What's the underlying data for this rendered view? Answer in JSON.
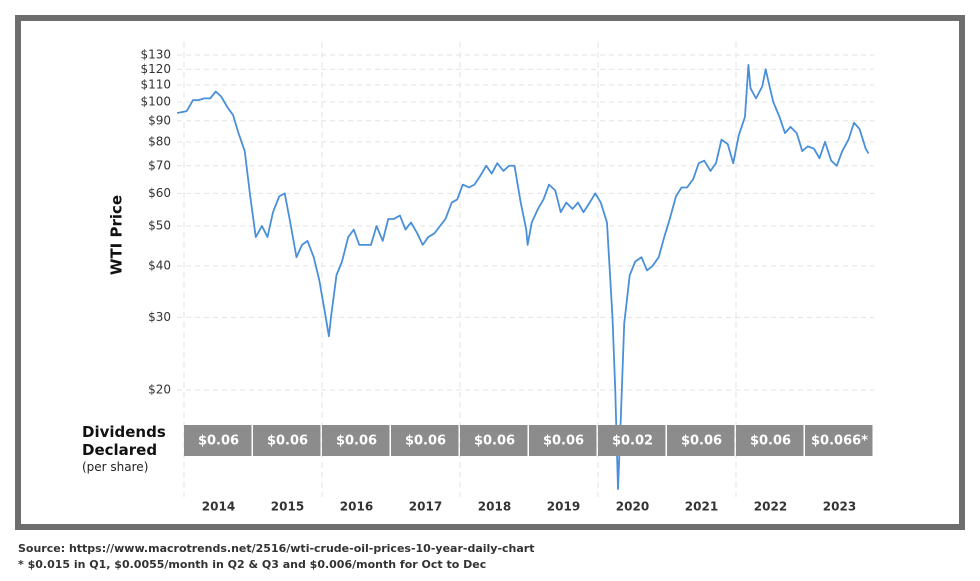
{
  "chart_data": {
    "type": "line",
    "y_label": "WTI Price",
    "log_scale": true,
    "grid": true,
    "color": "#4a90d9",
    "xlim": [
      2013.9,
      2024
    ],
    "xticks": [
      2014,
      2015,
      2016,
      2017,
      2018,
      2019,
      2020,
      2021,
      2022,
      2023
    ],
    "ylim": [
      11,
      140
    ],
    "yticks": [
      {
        "value": 20,
        "label": "$20"
      },
      {
        "value": 30,
        "label": "$30"
      },
      {
        "value": 40,
        "label": "$40"
      },
      {
        "value": 50,
        "label": "$50"
      },
      {
        "value": 60,
        "label": "$60"
      },
      {
        "value": 70,
        "label": "$70"
      },
      {
        "value": 80,
        "label": "$80"
      },
      {
        "value": 90,
        "label": "$90"
      },
      {
        "value": 100,
        "label": "$100"
      },
      {
        "value": 110,
        "label": "$110"
      },
      {
        "value": 120,
        "label": "$120"
      },
      {
        "value": 130,
        "label": "$130"
      }
    ],
    "x": [
      2013.9,
      2014.04,
      2014.13,
      2014.21,
      2014.29,
      2014.38,
      2014.46,
      2014.54,
      2014.63,
      2014.71,
      2014.79,
      2014.88,
      2014.96,
      2015.04,
      2015.13,
      2015.21,
      2015.29,
      2015.38,
      2015.46,
      2015.54,
      2015.63,
      2015.71,
      2015.79,
      2015.88,
      2015.96,
      2016.04,
      2016.1,
      2016.13,
      2016.21,
      2016.29,
      2016.38,
      2016.46,
      2016.54,
      2016.63,
      2016.71,
      2016.79,
      2016.88,
      2016.96,
      2017.04,
      2017.13,
      2017.21,
      2017.29,
      2017.38,
      2017.46,
      2017.54,
      2017.63,
      2017.71,
      2017.79,
      2017.88,
      2017.96,
      2018.04,
      2018.13,
      2018.21,
      2018.29,
      2018.38,
      2018.46,
      2018.54,
      2018.63,
      2018.71,
      2018.79,
      2018.88,
      2018.96,
      2018.98,
      2019.04,
      2019.13,
      2019.21,
      2019.29,
      2019.38,
      2019.46,
      2019.54,
      2019.63,
      2019.71,
      2019.79,
      2019.88,
      2019.96,
      2020.04,
      2020.13,
      2020.21,
      2020.25,
      2020.29,
      2020.33,
      2020.38,
      2020.46,
      2020.54,
      2020.63,
      2020.71,
      2020.79,
      2020.88,
      2020.96,
      2021.04,
      2021.13,
      2021.21,
      2021.29,
      2021.38,
      2021.46,
      2021.54,
      2021.63,
      2021.71,
      2021.79,
      2021.88,
      2021.96,
      2022.04,
      2022.13,
      2022.18,
      2022.21,
      2022.29,
      2022.38,
      2022.43,
      2022.46,
      2022.54,
      2022.63,
      2022.71,
      2022.79,
      2022.88,
      2022.96,
      2023.04,
      2023.13,
      2023.21,
      2023.29,
      2023.38,
      2023.46,
      2023.54,
      2023.63,
      2023.71,
      2023.79,
      2023.88,
      2023.92
    ],
    "values": [
      94,
      95,
      101,
      101,
      102,
      102,
      106,
      103,
      97,
      93,
      84,
      76,
      59,
      47,
      50,
      47,
      54,
      59,
      60,
      51,
      42,
      45,
      46,
      42,
      37,
      31,
      27,
      30,
      38,
      41,
      47,
      49,
      45,
      45,
      45,
      50,
      46,
      52,
      52,
      53,
      49,
      51,
      48,
      45,
      47,
      48,
      50,
      52,
      57,
      58,
      63,
      62,
      63,
      66,
      70,
      67,
      71,
      68,
      70,
      70,
      57,
      49,
      45,
      51,
      55,
      58,
      63,
      61,
      54,
      57,
      55,
      57,
      54,
      57,
      60,
      57,
      51,
      30,
      20,
      11.5,
      17,
      29,
      38,
      41,
      42,
      39,
      40,
      42,
      47,
      52,
      59,
      62,
      62,
      65,
      71,
      72,
      68,
      71,
      81,
      79,
      71,
      83,
      92,
      123,
      108,
      102,
      109,
      120,
      114,
      100,
      92,
      84,
      87,
      84,
      76,
      78,
      77,
      73,
      80,
      72,
      70,
      76,
      81,
      89,
      86,
      77,
      75
    ],
    "dividends": {
      "title": "Dividends Declared",
      "subtitle": "(per share)",
      "color": "#8c8c8c",
      "values": [
        0.06,
        0.06,
        0.06,
        0.06,
        0.06,
        0.06,
        0.02,
        0.06,
        0.06,
        0.066
      ],
      "value_labels": [
        "$0.06",
        "$0.06",
        "$0.06",
        "$0.06",
        "$0.06",
        "$0.06",
        "$0.02",
        "$0.06",
        "$0.06",
        "$0.066*"
      ]
    },
    "source": "Source: https://www.macrotrends.net/2516/wti-crude-oil-prices-10-year-daily-chart",
    "footnote": "* $0.015 in Q1, $0.0055/month in Q2 & Q3 and $0.006/month for Oct to Dec"
  }
}
